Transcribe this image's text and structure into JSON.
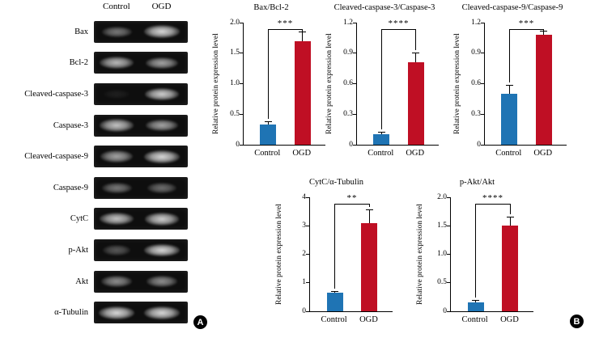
{
  "panel_a": {
    "badge": "A",
    "col_headers": [
      "Control",
      "OGD"
    ],
    "blots": [
      {
        "label": "Bax",
        "control": 0.5,
        "ogd": 0.95
      },
      {
        "label": "Bcl-2",
        "control": 0.8,
        "ogd": 0.7
      },
      {
        "label": "Cleaved-caspase-3",
        "control": 0.08,
        "ogd": 0.9
      },
      {
        "label": "Caspase-3",
        "control": 0.85,
        "ogd": 0.7
      },
      {
        "label": "Cleaved-caspase-9",
        "control": 0.7,
        "ogd": 0.95
      },
      {
        "label": "Caspase-9",
        "control": 0.5,
        "ogd": 0.45
      },
      {
        "label": "CytC",
        "control": 0.85,
        "ogd": 0.9
      },
      {
        "label": "p-Akt",
        "control": 0.35,
        "ogd": 0.95
      },
      {
        "label": "Akt",
        "control": 0.6,
        "ogd": 0.6
      },
      {
        "label": "α-Tubulin",
        "control": 0.95,
        "ogd": 0.95
      }
    ]
  },
  "panel_b": {
    "badge": "B"
  },
  "colors": {
    "control": "#1f74b4",
    "ogd": "#bf0f24",
    "axis": "#000000"
  },
  "chart_data": [
    {
      "type": "bar",
      "title": "Bax/Bcl-2",
      "ylabel": "Relative protein expression level",
      "categories": [
        "Control",
        "OGD"
      ],
      "values": [
        0.33,
        1.7
      ],
      "errors": [
        0.04,
        0.14
      ],
      "ylim": [
        0,
        2.0
      ],
      "yticks": [
        "0",
        "0.5",
        "1.0",
        "1.5",
        "2.0"
      ],
      "significance": "***",
      "legend": "none",
      "grid": false
    },
    {
      "type": "bar",
      "title": "Cleaved-caspase-3/Caspase-3",
      "ylabel": "Relative protein expression level",
      "categories": [
        "Control",
        "OGD"
      ],
      "values": [
        0.1,
        0.81
      ],
      "errors": [
        0.02,
        0.09
      ],
      "ylim": [
        0,
        1.2
      ],
      "yticks": [
        "0",
        "0.3",
        "0.6",
        "0.9",
        "1.2"
      ],
      "significance": "****",
      "legend": "none",
      "grid": false
    },
    {
      "type": "bar",
      "title": "Cleaved-caspase-9/Caspase-9",
      "ylabel": "Relative protein expression level",
      "categories": [
        "Control",
        "OGD"
      ],
      "values": [
        0.5,
        1.08
      ],
      "errors": [
        0.08,
        0.03
      ],
      "ylim": [
        0,
        1.2
      ],
      "yticks": [
        "0",
        "0.3",
        "0.6",
        "0.9",
        "1.2"
      ],
      "significance": "***",
      "legend": "none",
      "grid": false
    },
    {
      "type": "bar",
      "title": "CytC/α-Tubulin",
      "ylabel": "Relative protein expression level",
      "categories": [
        "Control",
        "OGD"
      ],
      "values": [
        0.65,
        3.1
      ],
      "errors": [
        0.04,
        0.45
      ],
      "ylim": [
        0,
        4
      ],
      "yticks": [
        "0",
        "1",
        "2",
        "3",
        "4"
      ],
      "significance": "**",
      "legend": "none",
      "grid": false
    },
    {
      "type": "bar",
      "title": "p-Akt/Akt",
      "ylabel": "Relative protein expression level",
      "categories": [
        "Control",
        "OGD"
      ],
      "values": [
        0.15,
        1.5
      ],
      "errors": [
        0.03,
        0.14
      ],
      "ylim": [
        0,
        2.0
      ],
      "yticks": [
        "0",
        "0.5",
        "1.0",
        "1.5",
        "2.0"
      ],
      "significance": "****",
      "legend": "none",
      "grid": false
    }
  ]
}
